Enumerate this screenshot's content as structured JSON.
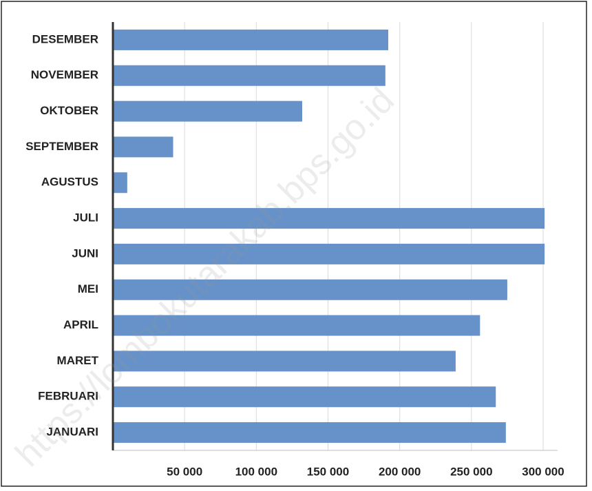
{
  "chart_data": {
    "type": "barh",
    "categories": [
      "DESEMBER",
      "NOVEMBER",
      "OKTOBER",
      "SEPTEMBER",
      "AGUSTUS",
      "JULI",
      "JUNI",
      "MEI",
      "APRIL",
      "MARET",
      "FEBRUARI",
      "JANUARI"
    ],
    "values": [
      192000,
      190000,
      132000,
      42000,
      10000,
      301000,
      301000,
      275000,
      256000,
      239000,
      267000,
      274000
    ],
    "color": "#6792c9",
    "xlim": [
      0,
      310000
    ],
    "xticks": [
      {
        "value": 50000,
        "label": "50 000"
      },
      {
        "value": 100000,
        "label": "100 000"
      },
      {
        "value": 150000,
        "label": "150 000"
      },
      {
        "value": 200000,
        "label": "200 000"
      },
      {
        "value": 250000,
        "label": "250 000"
      },
      {
        "value": 300000,
        "label": "300 000"
      }
    ],
    "grid": true,
    "watermark": "https://lombokutarakab.bps.go.id"
  }
}
